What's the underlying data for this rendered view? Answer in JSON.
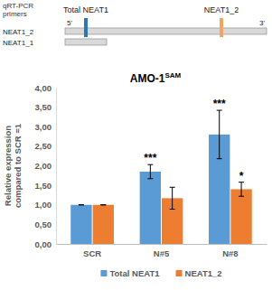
{
  "chart_data": {
    "type": "bar",
    "title": {
      "text": "AMO-1",
      "superscript": "SAM"
    },
    "y_label": [
      "Relative expression",
      "compared to SCR =1"
    ],
    "categories": [
      "SCR",
      "N#5",
      "N#8"
    ],
    "series": [
      {
        "name": "Total NEAT1",
        "color": "#5b9bd5",
        "values": [
          1.0,
          1.85,
          2.8
        ],
        "errors": [
          0,
          0.18,
          0.62
        ],
        "significance": [
          null,
          "***",
          "***"
        ]
      },
      {
        "name": "NEAT1_2",
        "color": "#ed7d31",
        "values": [
          1.0,
          1.17,
          1.4
        ],
        "errors": [
          0,
          0.28,
          0.18
        ],
        "significance": [
          null,
          null,
          "*"
        ]
      }
    ],
    "ylim": [
      0,
      4
    ],
    "yticks": [
      {
        "value": 0,
        "label": "0,00"
      },
      {
        "value": 0.5,
        "label": "0,50"
      },
      {
        "value": 1,
        "label": "1,00"
      },
      {
        "value": 1.5,
        "label": "1,50"
      },
      {
        "value": 2,
        "label": "2,00"
      },
      {
        "value": 2.5,
        "label": "2,50"
      },
      {
        "value": 3,
        "label": "3,00"
      },
      {
        "value": 3.5,
        "label": "3,50"
      },
      {
        "value": 4,
        "label": "4,00"
      }
    ],
    "grid": false,
    "legend": "bottom"
  },
  "diagram": {
    "primer_label": [
      "qRT-PCR",
      "primers"
    ],
    "primers": [
      {
        "name": "Total NEAT1",
        "color": "#2e75b6"
      },
      {
        "name": "NEAT1_2",
        "color": "#f4a460"
      }
    ],
    "ends": [
      "5'",
      "3'"
    ],
    "transcripts": [
      {
        "name": "NEAT1_2"
      },
      {
        "name": "NEAT1_1"
      }
    ]
  }
}
